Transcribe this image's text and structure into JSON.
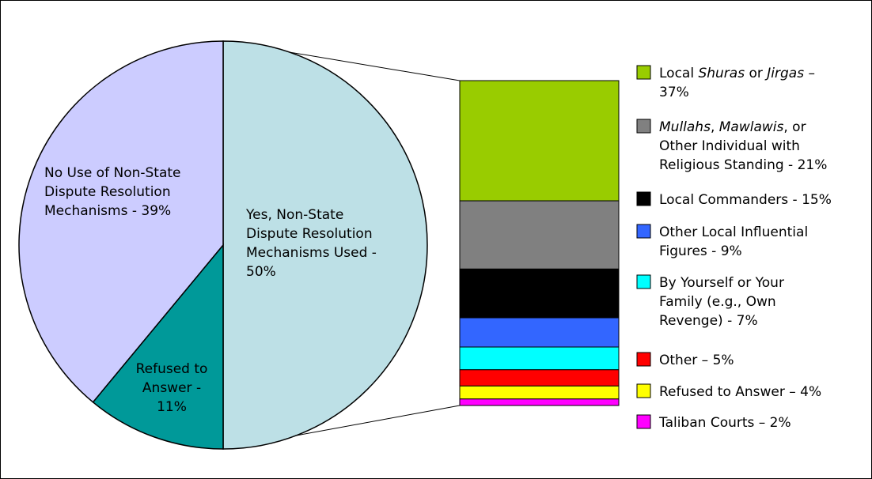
{
  "chart_data": {
    "type": "bar-of-pie",
    "pie": {
      "slices": [
        {
          "key": "yes",
          "label_lines": [
            "Yes, Non-State",
            "Dispute Resolution",
            "Mechanisms Used -",
            "50%"
          ],
          "value": 50,
          "color": "#bde0e6"
        },
        {
          "key": "refused",
          "label_lines": [
            "Refused to",
            "Answer -",
            "11%"
          ],
          "value": 11,
          "color": "#009999"
        },
        {
          "key": "no",
          "label_lines": [
            "No Use of Non-State",
            "Dispute Resolution",
            "Mechanisms - 39%"
          ],
          "value": 39,
          "color": "#ccccff"
        }
      ]
    },
    "breakdown": {
      "of_slice": "yes",
      "items": [
        {
          "value": 37,
          "color": "#99cc00",
          "label_lines": [
            [
              {
                "t": "Local "
              },
              {
                "t": "Shuras",
                "i": true
              },
              {
                "t": " or "
              },
              {
                "t": "Jirgas",
                "i": true
              },
              {
                "t": " –"
              }
            ],
            [
              {
                "t": "37%"
              }
            ]
          ]
        },
        {
          "value": 21,
          "color": "#808080",
          "label_lines": [
            [
              {
                "t": "Mullahs",
                "i": true
              },
              {
                "t": ", "
              },
              {
                "t": "Mawlawis",
                "i": true
              },
              {
                "t": ", or"
              }
            ],
            [
              {
                "t": "Other Individual with"
              }
            ],
            [
              {
                "t": "Religious Standing - 21%"
              }
            ]
          ]
        },
        {
          "value": 15,
          "color": "#000000",
          "label_lines": [
            [
              {
                "t": "Local Commanders - 15%"
              }
            ]
          ]
        },
        {
          "value": 9,
          "color": "#3366ff",
          "label_lines": [
            [
              {
                "t": "Other Local Influential"
              }
            ],
            [
              {
                "t": "Figures - 9%"
              }
            ]
          ]
        },
        {
          "value": 7,
          "color": "#00ffff",
          "label_lines": [
            [
              {
                "t": "By Yourself or Your"
              }
            ],
            [
              {
                "t": "Family (e.g., Own"
              }
            ],
            [
              {
                "t": "Revenge) - 7%"
              }
            ]
          ]
        },
        {
          "value": 5,
          "color": "#ff0000",
          "label_lines": [
            [
              {
                "t": "Other – 5%"
              }
            ]
          ]
        },
        {
          "value": 4,
          "color": "#ffff00",
          "label_lines": [
            [
              {
                "t": "Refused to Answer – 4%"
              }
            ]
          ]
        },
        {
          "value": 2,
          "color": "#ff00ff",
          "label_lines": [
            [
              {
                "t": "Taliban Courts – 2%"
              }
            ]
          ]
        }
      ]
    },
    "legend_position": "right"
  }
}
